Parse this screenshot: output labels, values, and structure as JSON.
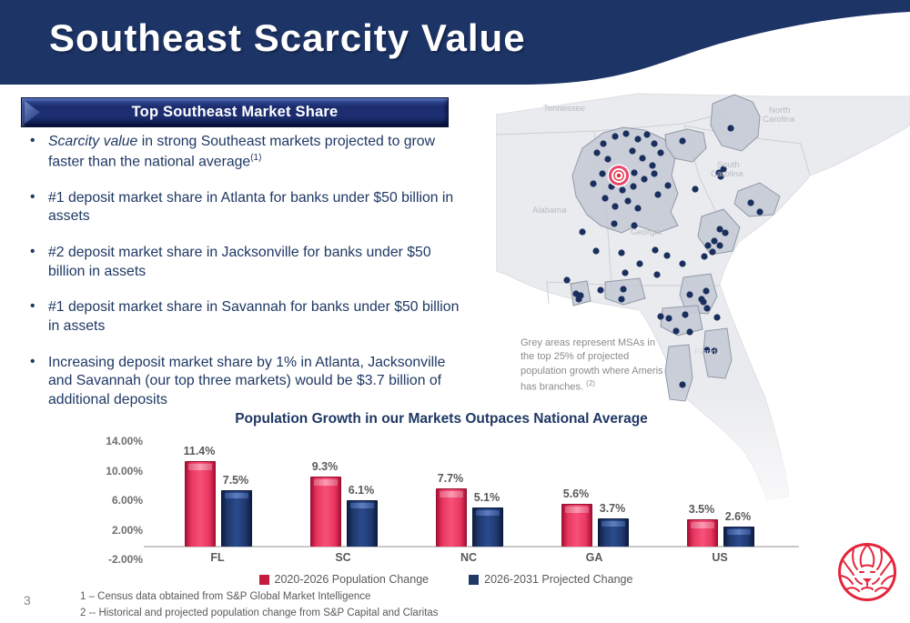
{
  "slide": {
    "title": "Southeast Scarcity Value",
    "page_number": "3"
  },
  "panel": {
    "badge_label": "Top Southeast Market Share"
  },
  "bullets": {
    "b1_italic": "Scarcity value",
    "b1_text": " in strong Southeast markets projected to grow faster than the national average",
    "b1_sup": "(1)",
    "b2": "#1 deposit market share in Atlanta for banks under $50 billion in assets",
    "b3": "#2 deposit market share in Jacksonville for banks under $50 billion in assets",
    "b4": "#1 deposit market share in Savannah for banks under $50 billion in assets",
    "b5": "Increasing deposit market share by 1% in Atlanta, Jacksonville and Savannah (our top three markets) would be $3.7 billion of additional deposits"
  },
  "map": {
    "labels": {
      "tennessee": "Tennessee",
      "north_1": "North",
      "north_2": "Carolina",
      "south_1": "South",
      "south_2": "Carolina",
      "alabama": "Alabama",
      "georgia": "Georgia",
      "florida": "Florida"
    },
    "caption": "Grey areas represent MSAs in the top 25% of projected population growth where Ameris has branches. ",
    "caption_sup": "(2)"
  },
  "chart_data": {
    "type": "bar",
    "title": "Population Growth in our Markets Outpaces National Average",
    "categories": [
      "FL",
      "SC",
      "NC",
      "GA",
      "US"
    ],
    "series": [
      {
        "name": "2020-2026 Population Change",
        "color": "#C41B3E",
        "values": [
          11.4,
          9.3,
          7.7,
          5.6,
          3.5
        ]
      },
      {
        "name": "2026-2031 Projected Change",
        "color": "#1F3864",
        "values": [
          7.5,
          6.1,
          5.1,
          3.7,
          2.6
        ]
      }
    ],
    "y_ticks": [
      "14.00%",
      "10.00%",
      "6.00%",
      "2.00%",
      "-2.00%"
    ],
    "ylim": [
      -2,
      14
    ],
    "grid": false,
    "legend_position": "bottom"
  },
  "footnotes": [
    "1 – Census data obtained from S&P Global Market Intelligence",
    "2 -- Historical and projected population change from S&P Capital and Claritas"
  ],
  "colors": {
    "header_navy": "#1D3467",
    "accent_red": "#E4253C",
    "bullet_navy": "#1F3864"
  }
}
